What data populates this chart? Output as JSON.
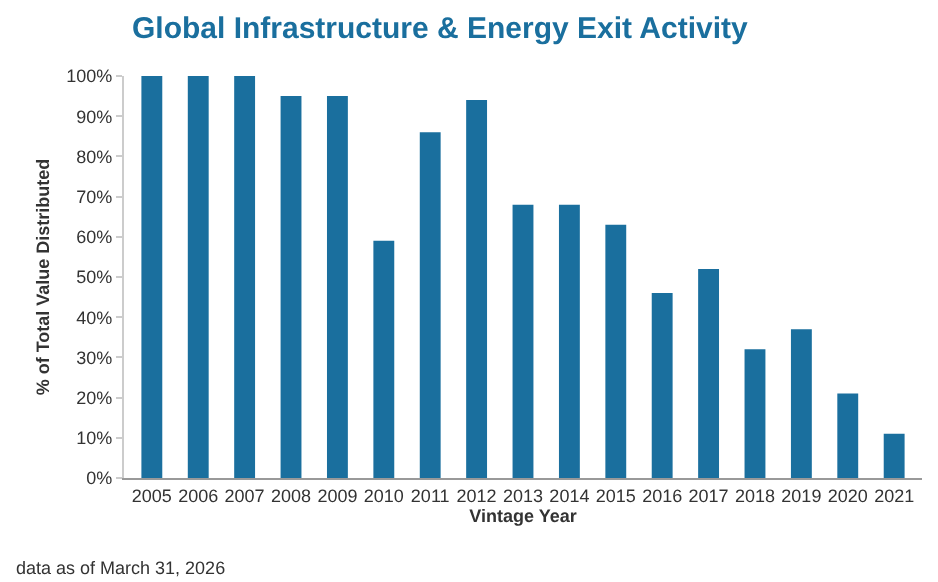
{
  "chart_data": {
    "type": "bar",
    "title": "Global Infrastructure & Energy Exit Activity",
    "xlabel": "Vintage Year",
    "ylabel": "% of Total Value Distributed",
    "categories": [
      "2005",
      "2006",
      "2007",
      "2008",
      "2009",
      "2010",
      "2011",
      "2012",
      "2013",
      "2014",
      "2015",
      "2016",
      "2017",
      "2018",
      "2019",
      "2020",
      "2021"
    ],
    "values": [
      100,
      100,
      100,
      95,
      95,
      59,
      86,
      94,
      68,
      68,
      63,
      46,
      52,
      32,
      37,
      21,
      11
    ],
    "color": "#1a6f9e",
    "ylim": [
      0,
      100
    ],
    "yticks": [
      {
        "value": 0,
        "label": "0%"
      },
      {
        "value": 10,
        "label": "10%"
      },
      {
        "value": 20,
        "label": "20%"
      },
      {
        "value": 30,
        "label": "30%"
      },
      {
        "value": 40,
        "label": "40%"
      },
      {
        "value": 50,
        "label": "50%"
      },
      {
        "value": 60,
        "label": "60%"
      },
      {
        "value": 70,
        "label": "70%"
      },
      {
        "value": 80,
        "label": "80%"
      },
      {
        "value": 90,
        "label": "90%"
      },
      {
        "value": 100,
        "label": "100%"
      }
    ],
    "grid": false,
    "annotations": [
      "data as of March 31, 2026"
    ]
  }
}
